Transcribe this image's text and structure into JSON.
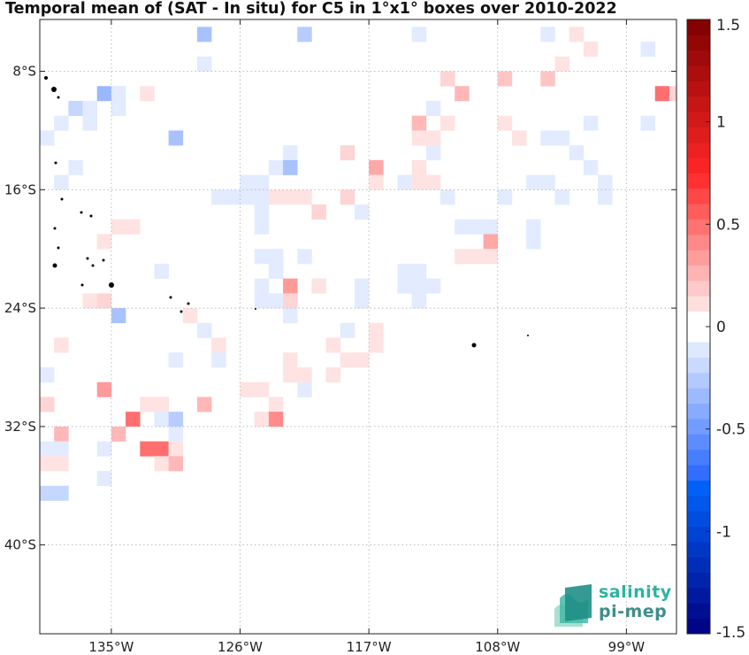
{
  "title": "Temporal mean of (SAT - In situ) for C5 in 1°x1° boxes over 2010-2022",
  "logo": {
    "line1": "salinity",
    "line2": "pi-mep",
    "name": "salinity-pi-mep-logo"
  },
  "map": {
    "lon_min": -140,
    "lon_max": -95.5,
    "lat_min": -46,
    "lat_max": -4.5,
    "lon_ticks": [
      {
        "value": -135,
        "label": "135°W"
      },
      {
        "value": -126,
        "label": "126°W"
      },
      {
        "value": -117,
        "label": "117°W"
      },
      {
        "value": -108,
        "label": "108°W"
      },
      {
        "value": -99,
        "label": "99°W"
      }
    ],
    "lat_ticks": [
      {
        "value": -8,
        "label": "8°S"
      },
      {
        "value": -16,
        "label": "16°S"
      },
      {
        "value": -24,
        "label": "24°S"
      },
      {
        "value": -32,
        "label": "32°S"
      },
      {
        "value": -40,
        "label": "40°S"
      }
    ],
    "grid": true,
    "cells": [
      {
        "lon": -128.5,
        "lat": -5.5,
        "v": -0.3
      },
      {
        "lon": -121.5,
        "lat": -5.5,
        "v": -0.25
      },
      {
        "lon": -104.5,
        "lat": -5.5,
        "v": -0.1
      },
      {
        "lon": -113.5,
        "lat": -5.5,
        "v": -0.1
      },
      {
        "lon": -102.5,
        "lat": -5.5,
        "v": 0.1
      },
      {
        "lon": -101.5,
        "lat": -6.5,
        "v": 0.1
      },
      {
        "lon": -97.5,
        "lat": -6.5,
        "v": -0.1
      },
      {
        "lon": -128.5,
        "lat": -7.5,
        "v": -0.1
      },
      {
        "lon": -103.5,
        "lat": -7.5,
        "v": 0.1
      },
      {
        "lon": -111.5,
        "lat": -8.5,
        "v": 0.15
      },
      {
        "lon": -107.5,
        "lat": -8.5,
        "v": 0.2
      },
      {
        "lon": -104.5,
        "lat": -8.5,
        "v": 0.2
      },
      {
        "lon": -135.5,
        "lat": -9.5,
        "v": -0.35
      },
      {
        "lon": -134.5,
        "lat": -9.5,
        "v": -0.1
      },
      {
        "lon": -132.5,
        "lat": -9.5,
        "v": 0.1
      },
      {
        "lon": -110.5,
        "lat": -9.5,
        "v": 0.25
      },
      {
        "lon": -96.5,
        "lat": -9.5,
        "v": 0.5
      },
      {
        "lon": -95.5,
        "lat": -9.5,
        "v": 0.15
      },
      {
        "lon": -137.5,
        "lat": -10.5,
        "v": -0.2
      },
      {
        "lon": -136.5,
        "lat": -10.5,
        "v": -0.1
      },
      {
        "lon": -134.5,
        "lat": -10.5,
        "v": -0.1
      },
      {
        "lon": -112.5,
        "lat": -10.5,
        "v": -0.1
      },
      {
        "lon": -138.5,
        "lat": -11.5,
        "v": -0.1
      },
      {
        "lon": -136.5,
        "lat": -11.5,
        "v": -0.1
      },
      {
        "lon": -113.5,
        "lat": -11.5,
        "v": 0.25
      },
      {
        "lon": -111.5,
        "lat": -11.5,
        "v": 0.1
      },
      {
        "lon": -107.5,
        "lat": -11.5,
        "v": 0.1
      },
      {
        "lon": -101.5,
        "lat": -11.5,
        "v": -0.1
      },
      {
        "lon": -97.5,
        "lat": -11.5,
        "v": -0.1
      },
      {
        "lon": -139.5,
        "lat": -12.5,
        "v": -0.1
      },
      {
        "lon": -130.5,
        "lat": -12.5,
        "v": -0.3
      },
      {
        "lon": -113.5,
        "lat": -12.5,
        "v": 0.1
      },
      {
        "lon": -112.5,
        "lat": -12.5,
        "v": 0.1
      },
      {
        "lon": -106.5,
        "lat": -12.5,
        "v": 0.1
      },
      {
        "lon": -104.5,
        "lat": -12.5,
        "v": -0.1
      },
      {
        "lon": -103.5,
        "lat": -12.5,
        "v": -0.1
      },
      {
        "lon": -122.5,
        "lat": -13.5,
        "v": -0.1
      },
      {
        "lon": -118.5,
        "lat": -13.5,
        "v": 0.15
      },
      {
        "lon": -112.5,
        "lat": -13.5,
        "v": -0.1
      },
      {
        "lon": -102.5,
        "lat": -13.5,
        "v": -0.1
      },
      {
        "lon": -137.5,
        "lat": -14.5,
        "v": -0.1
      },
      {
        "lon": -123.5,
        "lat": -14.5,
        "v": -0.1
      },
      {
        "lon": -122.5,
        "lat": -14.5,
        "v": -0.3
      },
      {
        "lon": -116.5,
        "lat": -14.5,
        "v": 0.3
      },
      {
        "lon": -113.5,
        "lat": -14.5,
        "v": 0.1
      },
      {
        "lon": -101.5,
        "lat": -14.5,
        "v": -0.1
      },
      {
        "lon": -138.5,
        "lat": -15.5,
        "v": -0.1
      },
      {
        "lon": -124.5,
        "lat": -15.5,
        "v": -0.1
      },
      {
        "lon": -125.5,
        "lat": -15.5,
        "v": -0.1
      },
      {
        "lon": -116.5,
        "lat": -15.5,
        "v": 0.1
      },
      {
        "lon": -114.5,
        "lat": -15.5,
        "v": -0.1
      },
      {
        "lon": -113.5,
        "lat": -15.5,
        "v": 0.1
      },
      {
        "lon": -112.5,
        "lat": -15.5,
        "v": 0.1
      },
      {
        "lon": -105.5,
        "lat": -15.5,
        "v": -0.1
      },
      {
        "lon": -104.5,
        "lat": -15.5,
        "v": -0.1
      },
      {
        "lon": -100.5,
        "lat": -15.5,
        "v": -0.1
      },
      {
        "lon": -127.5,
        "lat": -16.5,
        "v": -0.1
      },
      {
        "lon": -126.5,
        "lat": -16.5,
        "v": -0.1
      },
      {
        "lon": -125.5,
        "lat": -16.5,
        "v": -0.1
      },
      {
        "lon": -124.5,
        "lat": -16.5,
        "v": -0.1
      },
      {
        "lon": -123.5,
        "lat": -16.5,
        "v": 0.1
      },
      {
        "lon": -122.5,
        "lat": -16.5,
        "v": 0.1
      },
      {
        "lon": -121.5,
        "lat": -16.5,
        "v": 0.1
      },
      {
        "lon": -118.5,
        "lat": -16.5,
        "v": 0.15
      },
      {
        "lon": -111.5,
        "lat": -16.5,
        "v": -0.1
      },
      {
        "lon": -107.5,
        "lat": -16.5,
        "v": -0.1
      },
      {
        "lon": -103.5,
        "lat": -16.5,
        "v": -0.1
      },
      {
        "lon": -100.5,
        "lat": -16.5,
        "v": -0.1
      },
      {
        "lon": -124.5,
        "lat": -17.5,
        "v": -0.1
      },
      {
        "lon": -120.5,
        "lat": -17.5,
        "v": 0.15
      },
      {
        "lon": -117.5,
        "lat": -17.5,
        "v": -0.1
      },
      {
        "lon": -134.5,
        "lat": -18.5,
        "v": 0.1
      },
      {
        "lon": -133.5,
        "lat": -18.5,
        "v": 0.1
      },
      {
        "lon": -124.5,
        "lat": -18.5,
        "v": -0.1
      },
      {
        "lon": -110.5,
        "lat": -18.5,
        "v": -0.1
      },
      {
        "lon": -109.5,
        "lat": -18.5,
        "v": -0.1
      },
      {
        "lon": -108.5,
        "lat": -18.5,
        "v": -0.1
      },
      {
        "lon": -105.5,
        "lat": -18.5,
        "v": -0.1
      },
      {
        "lon": -135.5,
        "lat": -19.5,
        "v": 0.1
      },
      {
        "lon": -108.5,
        "lat": -19.5,
        "v": 0.3
      },
      {
        "lon": -105.5,
        "lat": -19.5,
        "v": -0.1
      },
      {
        "lon": -124.5,
        "lat": -20.5,
        "v": -0.1
      },
      {
        "lon": -123.5,
        "lat": -20.5,
        "v": -0.1
      },
      {
        "lon": -121.5,
        "lat": -20.5,
        "v": -0.1
      },
      {
        "lon": -110.5,
        "lat": -20.5,
        "v": 0.1
      },
      {
        "lon": -109.5,
        "lat": -20.5,
        "v": 0.1
      },
      {
        "lon": -108.5,
        "lat": -20.5,
        "v": 0.1
      },
      {
        "lon": -131.5,
        "lat": -21.5,
        "v": -0.1
      },
      {
        "lon": -123.5,
        "lat": -21.5,
        "v": -0.1
      },
      {
        "lon": -114.5,
        "lat": -21.5,
        "v": -0.1
      },
      {
        "lon": -113.5,
        "lat": -21.5,
        "v": -0.1
      },
      {
        "lon": -124.5,
        "lat": -22.5,
        "v": -0.1
      },
      {
        "lon": -122.5,
        "lat": -22.5,
        "v": 0.35
      },
      {
        "lon": -117.5,
        "lat": -22.5,
        "v": -0.1
      },
      {
        "lon": -120.5,
        "lat": -22.5,
        "v": 0.1
      },
      {
        "lon": -114.5,
        "lat": -22.5,
        "v": -0.1
      },
      {
        "lon": -113.5,
        "lat": -22.5,
        "v": -0.1
      },
      {
        "lon": -112.5,
        "lat": -22.5,
        "v": -0.1
      },
      {
        "lon": -136.5,
        "lat": -23.5,
        "v": 0.1
      },
      {
        "lon": -135.5,
        "lat": -23.5,
        "v": 0.15
      },
      {
        "lon": -123.5,
        "lat": -23.5,
        "v": -0.1
      },
      {
        "lon": -124.5,
        "lat": -23.5,
        "v": -0.1
      },
      {
        "lon": -122.5,
        "lat": -23.5,
        "v": 0.15
      },
      {
        "lon": -117.5,
        "lat": -23.5,
        "v": -0.1
      },
      {
        "lon": -113.5,
        "lat": -23.5,
        "v": -0.1
      },
      {
        "lon": -134.5,
        "lat": -24.5,
        "v": -0.3
      },
      {
        "lon": -129.5,
        "lat": -24.5,
        "v": 0.1
      },
      {
        "lon": -122.5,
        "lat": -24.5,
        "v": -0.1
      },
      {
        "lon": -128.5,
        "lat": -25.5,
        "v": -0.1
      },
      {
        "lon": -118.5,
        "lat": -25.5,
        "v": -0.1
      },
      {
        "lon": -116.5,
        "lat": -25.5,
        "v": 0.1
      },
      {
        "lon": -138.5,
        "lat": -26.5,
        "v": 0.1
      },
      {
        "lon": -127.5,
        "lat": -26.5,
        "v": 0.1
      },
      {
        "lon": -119.5,
        "lat": -26.5,
        "v": 0.1
      },
      {
        "lon": -116.5,
        "lat": -26.5,
        "v": 0.1
      },
      {
        "lon": -130.5,
        "lat": -27.5,
        "v": -0.1
      },
      {
        "lon": -127.5,
        "lat": -27.5,
        "v": -0.1
      },
      {
        "lon": -122.5,
        "lat": -27.5,
        "v": 0.1
      },
      {
        "lon": -118.5,
        "lat": -27.5,
        "v": 0.1
      },
      {
        "lon": -117.5,
        "lat": -27.5,
        "v": 0.1
      },
      {
        "lon": -139.5,
        "lat": -28.5,
        "v": -0.1
      },
      {
        "lon": -122.5,
        "lat": -28.5,
        "v": 0.1
      },
      {
        "lon": -121.5,
        "lat": -28.5,
        "v": 0.1
      },
      {
        "lon": -119.5,
        "lat": -28.5,
        "v": 0.1
      },
      {
        "lon": -135.5,
        "lat": -29.5,
        "v": 0.35
      },
      {
        "lon": -125.5,
        "lat": -29.5,
        "v": 0.1
      },
      {
        "lon": -124.5,
        "lat": -29.5,
        "v": 0.1
      },
      {
        "lon": -121.5,
        "lat": -29.5,
        "v": -0.1
      },
      {
        "lon": -139.5,
        "lat": -30.5,
        "v": 0.15
      },
      {
        "lon": -132.5,
        "lat": -30.5,
        "v": 0.1
      },
      {
        "lon": -131.5,
        "lat": -30.5,
        "v": 0.1
      },
      {
        "lon": -128.5,
        "lat": -30.5,
        "v": 0.25
      },
      {
        "lon": -123.5,
        "lat": -30.5,
        "v": 0.1
      },
      {
        "lon": -133.5,
        "lat": -31.5,
        "v": 0.5
      },
      {
        "lon": -131.5,
        "lat": -31.5,
        "v": -0.1
      },
      {
        "lon": -130.5,
        "lat": -31.5,
        "v": -0.25
      },
      {
        "lon": -124.5,
        "lat": -31.5,
        "v": 0.1
      },
      {
        "lon": -123.5,
        "lat": -31.5,
        "v": 0.4
      },
      {
        "lon": -138.5,
        "lat": -32.5,
        "v": 0.25
      },
      {
        "lon": -134.5,
        "lat": -32.5,
        "v": 0.25
      },
      {
        "lon": -130.5,
        "lat": -32.5,
        "v": -0.1
      },
      {
        "lon": -139.5,
        "lat": -33.5,
        "v": -0.1
      },
      {
        "lon": -138.5,
        "lat": -33.5,
        "v": -0.1
      },
      {
        "lon": -132.5,
        "lat": -33.5,
        "v": 0.5
      },
      {
        "lon": -131.5,
        "lat": -33.5,
        "v": 0.5
      },
      {
        "lon": -130.5,
        "lat": -33.5,
        "v": 0.1
      },
      {
        "lon": -135.5,
        "lat": -33.5,
        "v": -0.1
      },
      {
        "lon": -139.5,
        "lat": -34.5,
        "v": 0.1
      },
      {
        "lon": -138.5,
        "lat": -34.5,
        "v": 0.1
      },
      {
        "lon": -131.5,
        "lat": -34.5,
        "v": 0.1
      },
      {
        "lon": -130.5,
        "lat": -34.5,
        "v": 0.25
      },
      {
        "lon": -135.5,
        "lat": -35.5,
        "v": -0.1
      },
      {
        "lon": -139.5,
        "lat": -36.5,
        "v": -0.2
      },
      {
        "lon": -138.5,
        "lat": -36.5,
        "v": -0.2
      }
    ]
  },
  "colorbar": {
    "min": -1.5,
    "max": 1.5,
    "steps": 40,
    "ticks": [
      {
        "value": 1.5,
        "label": "1.5"
      },
      {
        "value": 1,
        "label": "1"
      },
      {
        "value": 0.5,
        "label": "0.5"
      },
      {
        "value": 0,
        "label": "0"
      },
      {
        "value": -0.5,
        "label": "-0.5"
      },
      {
        "value": -1,
        "label": "-1"
      },
      {
        "value": -1.5,
        "label": "-1.5"
      }
    ]
  },
  "colors": {
    "land": "#000000",
    "grid": "#bbbbbb",
    "neg_strong": "#00007f",
    "pos_strong": "#7f0000"
  }
}
